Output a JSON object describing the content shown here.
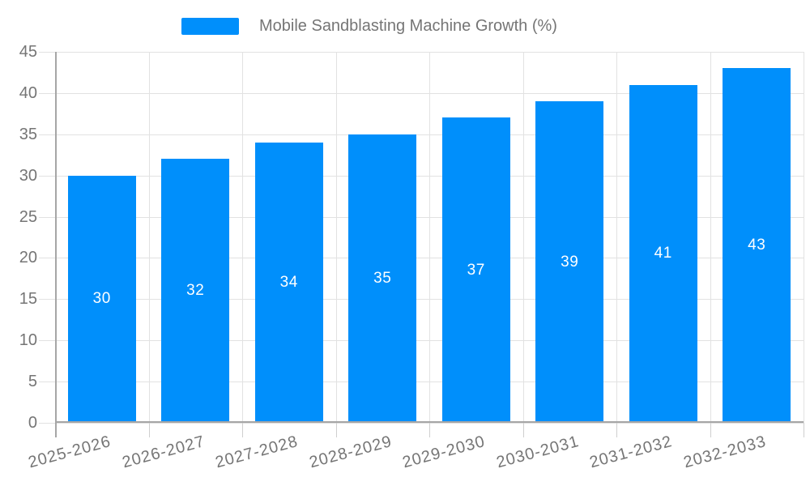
{
  "chart_data": {
    "type": "bar",
    "title": "Mobile Sandblasting Machine Growth (%)",
    "categories": [
      "2025-2026",
      "2026-2027",
      "2027-2028",
      "2028-2029",
      "2029-2030",
      "2030-2031",
      "2031-2032",
      "2032-2033"
    ],
    "series": [
      {
        "name": "Mobile Sandblasting Machine Growth (%)",
        "values": [
          30,
          32,
          34,
          35,
          37,
          39,
          41,
          43
        ]
      }
    ],
    "data_labels": [
      "30",
      "32",
      "34",
      "35",
      "37",
      "39",
      "41",
      "43"
    ],
    "xlabel": "",
    "ylabel": "",
    "ylim": [
      0,
      45
    ],
    "yticks": [
      0,
      5,
      10,
      15,
      20,
      25,
      30,
      35,
      40,
      45
    ],
    "grid": true,
    "legend_position": "top-center",
    "data_label_position": "inside-center",
    "colors": {
      "bar": "#008FFB",
      "axis_text": "#757575",
      "data_label": "#ffffff",
      "gridline": "#e2e2e2",
      "tick": "#cfcfcf",
      "axis_line": "#a6a6a6",
      "background": "#ffffff"
    }
  }
}
